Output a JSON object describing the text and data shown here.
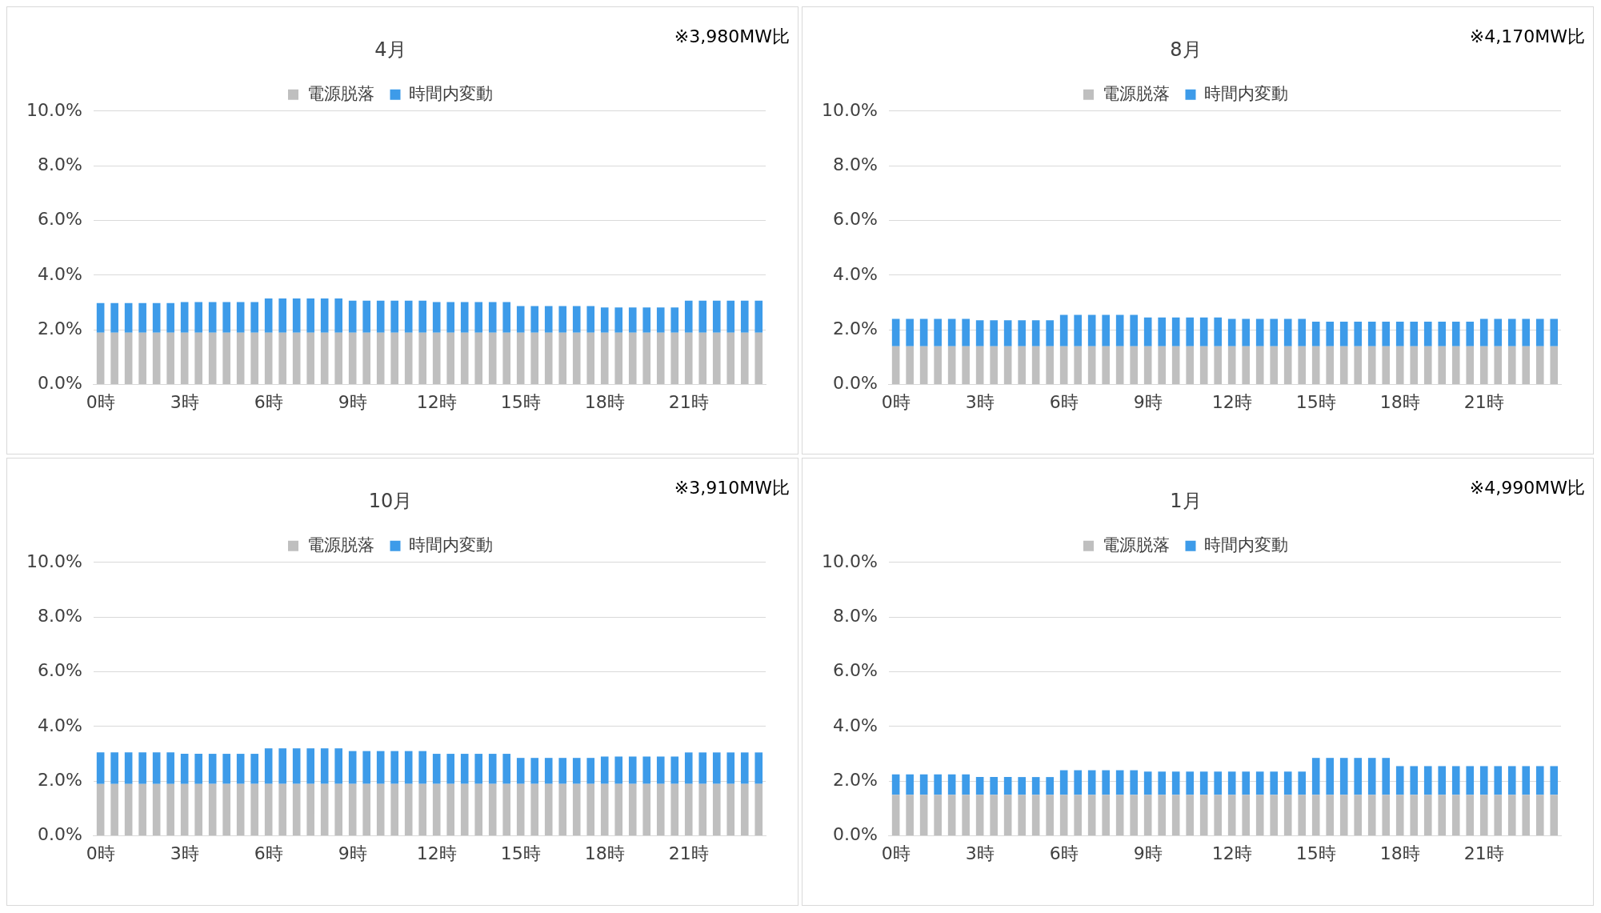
{
  "chart_data": [
    {
      "type": "bar",
      "title": "4月",
      "stacked": true,
      "legend": "top",
      "grid": "y",
      "ylim": [
        0,
        10
      ],
      "yticks": [
        {
          "value": 0,
          "label": "0.0%"
        },
        {
          "value": 2,
          "label": "2.0%"
        },
        {
          "value": 4,
          "label": "4.0%"
        },
        {
          "value": 6,
          "label": "6.0%"
        },
        {
          "value": 8,
          "label": "8.0%"
        },
        {
          "value": 10,
          "label": "10.0%"
        }
      ],
      "annotations": [
        "※3,980MW比"
      ],
      "categories": [
        "0時",
        null,
        null,
        null,
        null,
        null,
        "3時",
        null,
        null,
        null,
        null,
        null,
        "6時",
        null,
        null,
        null,
        null,
        null,
        "9時",
        null,
        null,
        null,
        null,
        null,
        "12時",
        null,
        null,
        null,
        null,
        null,
        "15時",
        null,
        null,
        null,
        null,
        null,
        "18時",
        null,
        null,
        null,
        null,
        null,
        "21時",
        null,
        null,
        null,
        null,
        null
      ],
      "series": [
        {
          "name": "電源脱落",
          "color": "#bfbfbf",
          "values": [
            1.9,
            1.9,
            1.9,
            1.9,
            1.9,
            1.9,
            1.9,
            1.9,
            1.9,
            1.9,
            1.9,
            1.9,
            1.9,
            1.9,
            1.9,
            1.9,
            1.9,
            1.9,
            1.9,
            1.9,
            1.9,
            1.9,
            1.9,
            1.9,
            1.9,
            1.9,
            1.9,
            1.9,
            1.9,
            1.9,
            1.9,
            1.9,
            1.9,
            1.9,
            1.9,
            1.9,
            1.9,
            1.9,
            1.9,
            1.9,
            1.9,
            1.9,
            1.9,
            1.9,
            1.9,
            1.9,
            1.9,
            1.9
          ]
        },
        {
          "name": "時間内変動",
          "color": "#3d9be9",
          "values": [
            1.08,
            1.08,
            1.08,
            1.08,
            1.08,
            1.08,
            1.12,
            1.12,
            1.12,
            1.12,
            1.12,
            1.12,
            1.25,
            1.25,
            1.25,
            1.25,
            1.25,
            1.25,
            1.17,
            1.17,
            1.17,
            1.17,
            1.17,
            1.17,
            1.12,
            1.12,
            1.12,
            1.12,
            1.12,
            1.12,
            0.97,
            0.97,
            0.97,
            0.97,
            0.97,
            0.97,
            0.92,
            0.92,
            0.92,
            0.92,
            0.92,
            0.92,
            1.17,
            1.17,
            1.17,
            1.17,
            1.17,
            1.17
          ]
        }
      ]
    },
    {
      "type": "bar",
      "title": "8月",
      "stacked": true,
      "legend": "top",
      "grid": "y",
      "ylim": [
        0,
        10
      ],
      "yticks": [
        {
          "value": 0,
          "label": "0.0%"
        },
        {
          "value": 2,
          "label": "2.0%"
        },
        {
          "value": 4,
          "label": "4.0%"
        },
        {
          "value": 6,
          "label": "6.0%"
        },
        {
          "value": 8,
          "label": "8.0%"
        },
        {
          "value": 10,
          "label": "10.0%"
        }
      ],
      "annotations": [
        "※4,170MW比"
      ],
      "categories": [
        "0時",
        null,
        null,
        null,
        null,
        null,
        "3時",
        null,
        null,
        null,
        null,
        null,
        "6時",
        null,
        null,
        null,
        null,
        null,
        "9時",
        null,
        null,
        null,
        null,
        null,
        "12時",
        null,
        null,
        null,
        null,
        null,
        "15時",
        null,
        null,
        null,
        null,
        null,
        "18時",
        null,
        null,
        null,
        null,
        null,
        "21時",
        null,
        null,
        null,
        null,
        null
      ],
      "series": [
        {
          "name": "電源脱落",
          "color": "#bfbfbf",
          "values": [
            1.4,
            1.4,
            1.4,
            1.4,
            1.4,
            1.4,
            1.4,
            1.4,
            1.4,
            1.4,
            1.4,
            1.4,
            1.4,
            1.4,
            1.4,
            1.4,
            1.4,
            1.4,
            1.4,
            1.4,
            1.4,
            1.4,
            1.4,
            1.4,
            1.4,
            1.4,
            1.4,
            1.4,
            1.4,
            1.4,
            1.4,
            1.4,
            1.4,
            1.4,
            1.4,
            1.4,
            1.4,
            1.4,
            1.4,
            1.4,
            1.4,
            1.4,
            1.4,
            1.4,
            1.4,
            1.4,
            1.4,
            1.4
          ]
        },
        {
          "name": "時間内変動",
          "color": "#3d9be9",
          "values": [
            1.0,
            1.0,
            1.0,
            1.0,
            1.0,
            1.0,
            0.95,
            0.95,
            0.95,
            0.95,
            0.95,
            0.95,
            1.15,
            1.15,
            1.15,
            1.15,
            1.15,
            1.15,
            1.05,
            1.05,
            1.05,
            1.05,
            1.05,
            1.05,
            1.0,
            1.0,
            1.0,
            1.0,
            1.0,
            1.0,
            0.9,
            0.9,
            0.9,
            0.9,
            0.9,
            0.9,
            0.9,
            0.9,
            0.9,
            0.9,
            0.9,
            0.9,
            1.0,
            1.0,
            1.0,
            1.0,
            1.0,
            1.0
          ]
        }
      ]
    },
    {
      "type": "bar",
      "title": "10月",
      "stacked": true,
      "legend": "top",
      "grid": "y",
      "ylim": [
        0,
        10
      ],
      "yticks": [
        {
          "value": 0,
          "label": "0.0%"
        },
        {
          "value": 2,
          "label": "2.0%"
        },
        {
          "value": 4,
          "label": "4.0%"
        },
        {
          "value": 6,
          "label": "6.0%"
        },
        {
          "value": 8,
          "label": "8.0%"
        },
        {
          "value": 10,
          "label": "10.0%"
        }
      ],
      "annotations": [
        "※3,910MW比"
      ],
      "categories": [
        "0時",
        null,
        null,
        null,
        null,
        null,
        "3時",
        null,
        null,
        null,
        null,
        null,
        "6時",
        null,
        null,
        null,
        null,
        null,
        "9時",
        null,
        null,
        null,
        null,
        null,
        "12時",
        null,
        null,
        null,
        null,
        null,
        "15時",
        null,
        null,
        null,
        null,
        null,
        "18時",
        null,
        null,
        null,
        null,
        null,
        "21時",
        null,
        null,
        null,
        null,
        null
      ],
      "series": [
        {
          "name": "電源脱落",
          "color": "#bfbfbf",
          "values": [
            1.9,
            1.9,
            1.9,
            1.9,
            1.9,
            1.9,
            1.9,
            1.9,
            1.9,
            1.9,
            1.9,
            1.9,
            1.9,
            1.9,
            1.9,
            1.9,
            1.9,
            1.9,
            1.9,
            1.9,
            1.9,
            1.9,
            1.9,
            1.9,
            1.9,
            1.9,
            1.9,
            1.9,
            1.9,
            1.9,
            1.9,
            1.9,
            1.9,
            1.9,
            1.9,
            1.9,
            1.9,
            1.9,
            1.9,
            1.9,
            1.9,
            1.9,
            1.9,
            1.9,
            1.9,
            1.9,
            1.9,
            1.9
          ]
        },
        {
          "name": "時間内変動",
          "color": "#3d9be9",
          "values": [
            1.15,
            1.15,
            1.15,
            1.15,
            1.15,
            1.15,
            1.1,
            1.1,
            1.1,
            1.1,
            1.1,
            1.1,
            1.3,
            1.3,
            1.3,
            1.3,
            1.3,
            1.3,
            1.2,
            1.2,
            1.2,
            1.2,
            1.2,
            1.2,
            1.1,
            1.1,
            1.1,
            1.1,
            1.1,
            1.1,
            0.95,
            0.95,
            0.95,
            0.95,
            0.95,
            0.95,
            1.0,
            1.0,
            1.0,
            1.0,
            1.0,
            1.0,
            1.15,
            1.15,
            1.15,
            1.15,
            1.15,
            1.15
          ]
        }
      ]
    },
    {
      "type": "bar",
      "title": "1月",
      "stacked": true,
      "legend": "top",
      "grid": "y",
      "ylim": [
        0,
        10
      ],
      "yticks": [
        {
          "value": 0,
          "label": "0.0%"
        },
        {
          "value": 2,
          "label": "2.0%"
        },
        {
          "value": 4,
          "label": "4.0%"
        },
        {
          "value": 6,
          "label": "6.0%"
        },
        {
          "value": 8,
          "label": "8.0%"
        },
        {
          "value": 10,
          "label": "10.0%"
        }
      ],
      "annotations": [
        "※4,990MW比"
      ],
      "categories": [
        "0時",
        null,
        null,
        null,
        null,
        null,
        "3時",
        null,
        null,
        null,
        null,
        null,
        "6時",
        null,
        null,
        null,
        null,
        null,
        "9時",
        null,
        null,
        null,
        null,
        null,
        "12時",
        null,
        null,
        null,
        null,
        null,
        "15時",
        null,
        null,
        null,
        null,
        null,
        "18時",
        null,
        null,
        null,
        null,
        null,
        "21時",
        null,
        null,
        null,
        null,
        null
      ],
      "series": [
        {
          "name": "電源脱落",
          "color": "#bfbfbf",
          "values": [
            1.5,
            1.5,
            1.5,
            1.5,
            1.5,
            1.5,
            1.5,
            1.5,
            1.5,
            1.5,
            1.5,
            1.5,
            1.5,
            1.5,
            1.5,
            1.5,
            1.5,
            1.5,
            1.5,
            1.5,
            1.5,
            1.5,
            1.5,
            1.5,
            1.5,
            1.5,
            1.5,
            1.5,
            1.5,
            1.5,
            1.5,
            1.5,
            1.5,
            1.5,
            1.5,
            1.5,
            1.5,
            1.5,
            1.5,
            1.5,
            1.5,
            1.5,
            1.5,
            1.5,
            1.5,
            1.5,
            1.5,
            1.5
          ]
        },
        {
          "name": "時間内変動",
          "color": "#3d9be9",
          "values": [
            0.75,
            0.75,
            0.75,
            0.75,
            0.75,
            0.75,
            0.65,
            0.65,
            0.65,
            0.65,
            0.65,
            0.65,
            0.9,
            0.9,
            0.9,
            0.9,
            0.9,
            0.9,
            0.85,
            0.85,
            0.85,
            0.85,
            0.85,
            0.85,
            0.85,
            0.85,
            0.85,
            0.85,
            0.85,
            0.85,
            1.35,
            1.35,
            1.35,
            1.35,
            1.35,
            1.35,
            1.05,
            1.05,
            1.05,
            1.05,
            1.05,
            1.05,
            1.05,
            1.05,
            1.05,
            1.05,
            1.05,
            1.05
          ]
        }
      ]
    }
  ]
}
